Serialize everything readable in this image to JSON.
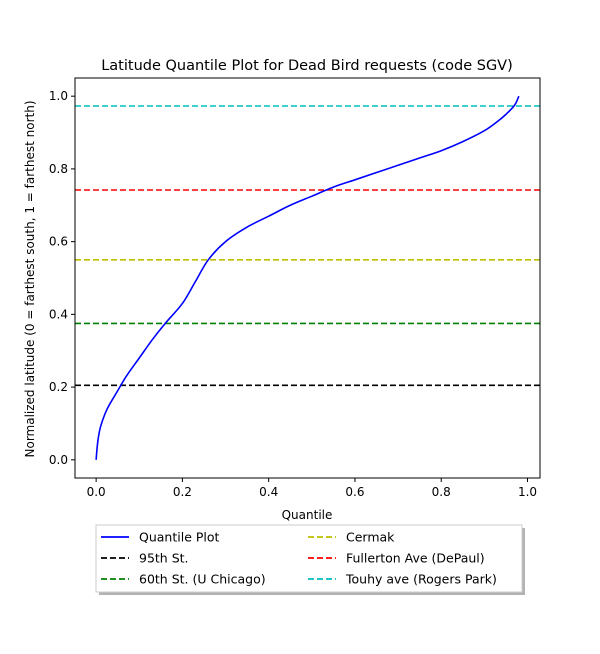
{
  "chart_data": {
    "type": "line",
    "title": "Latitude Quantile Plot for Dead Bird  requests (code SGV)",
    "xlabel": "Quantile",
    "ylabel": "Normalized latitude (0 = farthest south, 1 = farthest north)",
    "xlim": [
      -0.049,
      1.029
    ],
    "ylim": [
      -0.05,
      1.05
    ],
    "x_ticks": [
      0.0,
      0.2,
      0.4,
      0.6,
      0.8,
      1.0
    ],
    "x_tick_labels": [
      "0.0",
      "0.2",
      "0.4",
      "0.6",
      "0.8",
      "1.0"
    ],
    "y_ticks": [
      0.0,
      0.2,
      0.4,
      0.6,
      0.8,
      1.0
    ],
    "y_tick_labels": [
      "0.0",
      "0.2",
      "0.4",
      "0.6",
      "0.8",
      "1.0"
    ],
    "grid": false,
    "legend_position": "below-center",
    "series": [
      {
        "name": "Quantile Plot",
        "color": "#0000ff",
        "style": "solid",
        "x": [
          0.0,
          0.002,
          0.005,
          0.01,
          0.02,
          0.03,
          0.05,
          0.07,
          0.1,
          0.13,
          0.16,
          0.2,
          0.23,
          0.26,
          0.3,
          0.35,
          0.4,
          0.45,
          0.5,
          0.55,
          0.6,
          0.65,
          0.7,
          0.75,
          0.8,
          0.85,
          0.9,
          0.93,
          0.95,
          0.97,
          0.98
        ],
        "y": [
          0.0,
          0.03,
          0.06,
          0.09,
          0.125,
          0.15,
          0.19,
          0.23,
          0.28,
          0.33,
          0.375,
          0.43,
          0.49,
          0.55,
          0.6,
          0.64,
          0.67,
          0.7,
          0.725,
          0.75,
          0.77,
          0.79,
          0.81,
          0.83,
          0.85,
          0.875,
          0.905,
          0.93,
          0.95,
          0.975,
          1.0
        ]
      },
      {
        "name": "95th St.",
        "color": "#000000",
        "style": "dashed",
        "y": 0.205
      },
      {
        "name": "60th St. (U Chicago)",
        "color": "#008000",
        "style": "dashed",
        "y": 0.375
      },
      {
        "name": "Cermak",
        "color": "#bfbf00",
        "style": "dashed",
        "y": 0.55
      },
      {
        "name": "Fullerton Ave (DePaul)",
        "color": "#ff0000",
        "style": "dashed",
        "y": 0.742
      },
      {
        "name": "Touhy ave (Rogers Park)",
        "color": "#00bfbf",
        "style": "dashed",
        "y": 0.973
      }
    ]
  }
}
